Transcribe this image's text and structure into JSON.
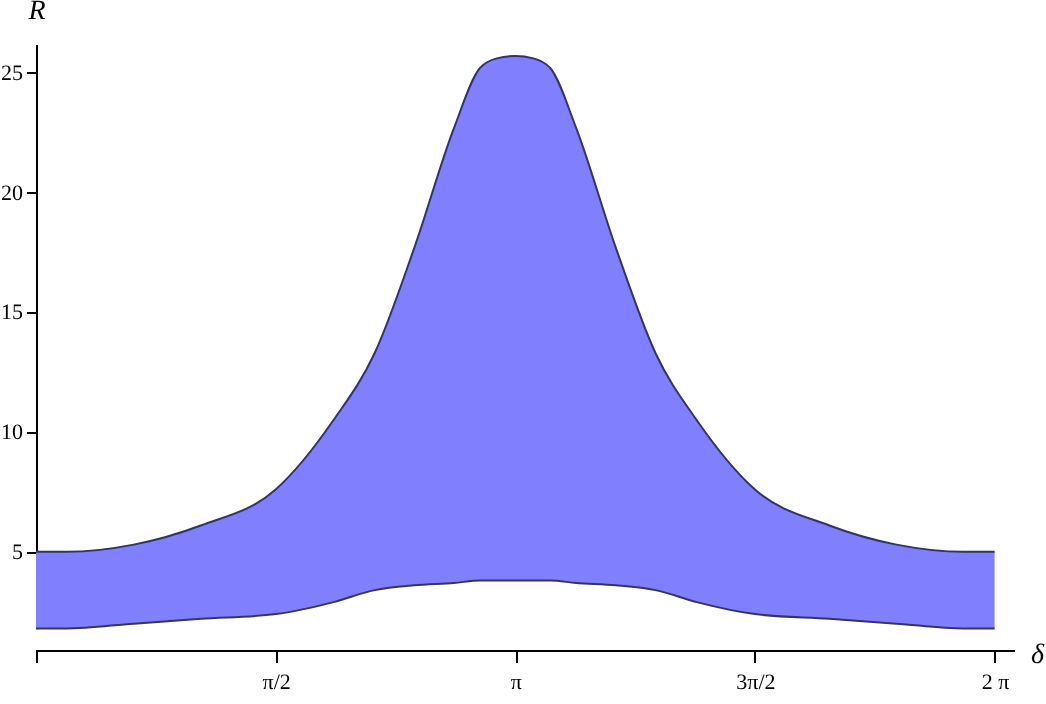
{
  "chart_data": {
    "type": "area",
    "stacked": true,
    "xlabel": "δ",
    "ylabel": "R",
    "x": [
      0,
      0.2,
      0.64,
      1.08,
      1.571,
      1.95,
      2.22,
      2.48,
      2.74,
      2.91,
      3.02,
      3.142,
      3.26,
      3.37,
      3.54,
      3.8,
      4.06,
      4.33,
      4.712,
      5.2,
      5.64,
      6.08,
      6.283
    ],
    "series": [
      {
        "color": "#ffffff",
        "values": [
          1.8,
          1.8,
          2.0,
          2.2,
          2.4,
          2.9,
          3.4,
          3.6,
          3.7,
          3.8,
          3.8,
          3.8,
          3.8,
          3.8,
          3.7,
          3.6,
          3.4,
          2.9,
          2.4,
          2.2,
          2.0,
          1.8,
          1.8
        ]
      },
      {
        "color": "#8080ff",
        "values": [
          3.2,
          3.2,
          3.3,
          3.9,
          5.2,
          7.6,
          9.9,
          14.1,
          19.0,
          21.4,
          21.8,
          21.9,
          21.8,
          21.4,
          19.0,
          14.1,
          9.9,
          7.6,
          5.2,
          3.9,
          3.3,
          3.2,
          3.2
        ]
      }
    ],
    "xlim": [
      0,
      6.41
    ],
    "ylim": [
      0.9,
      26.2
    ],
    "xticks": [
      {
        "value": 0,
        "label": null
      },
      {
        "value": 1.571,
        "label": "π/2"
      },
      {
        "value": 3.142,
        "label": "π"
      },
      {
        "value": 4.712,
        "label": "3π/2"
      },
      {
        "value": 6.283,
        "label": "2 π"
      }
    ],
    "yticks": [
      5,
      10,
      15,
      20,
      25
    ],
    "grid": false
  }
}
